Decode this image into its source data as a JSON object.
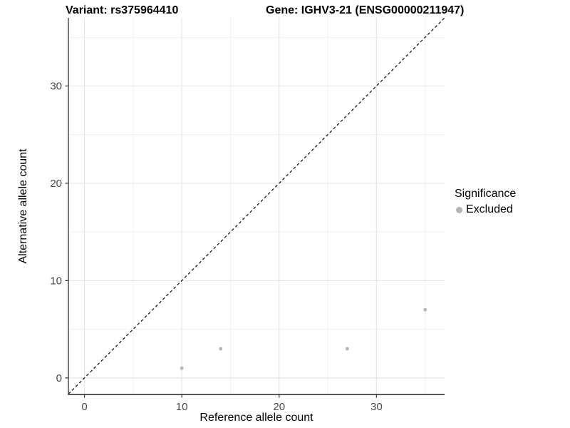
{
  "chart_data": {
    "type": "scatter",
    "title_left": "Variant: rs375964410",
    "title_right": "Gene: IGHV3-21 (ENSG00000211947)",
    "xlabel": "Reference allele count",
    "ylabel": "Alternative allele count",
    "x_ticks": [
      0,
      10,
      20,
      30
    ],
    "y_ticks": [
      0,
      10,
      20,
      30
    ],
    "x_minor_ticks": [
      5,
      15,
      25,
      35
    ],
    "y_minor_ticks": [
      5,
      15,
      25,
      35
    ],
    "xlim": [
      -1.65,
      37.0
    ],
    "ylim": [
      -1.7,
      37.0
    ],
    "grid": true,
    "legend": {
      "position": "right",
      "title": "Significance",
      "entries": [
        {
          "label": "Excluded",
          "color": "#b5b5b5"
        }
      ]
    },
    "series": [
      {
        "name": "Excluded",
        "points": [
          {
            "x": 10,
            "y": 1
          },
          {
            "x": 14,
            "y": 3
          },
          {
            "x": 27,
            "y": 3
          },
          {
            "x": 35,
            "y": 7
          }
        ]
      }
    ],
    "reference_line": {
      "kind": "identity",
      "style": "dashed",
      "color": "#1a1a1a"
    }
  },
  "colors": {
    "background": "#ffffff",
    "point": "#b5b5b5",
    "grid_major": "#e4e4e4",
    "grid_minor": "#efefef",
    "axis_line": "#404040",
    "tick_mark": "#333333",
    "tick_label": "#4a4a4a",
    "title_text": "#000000"
  }
}
